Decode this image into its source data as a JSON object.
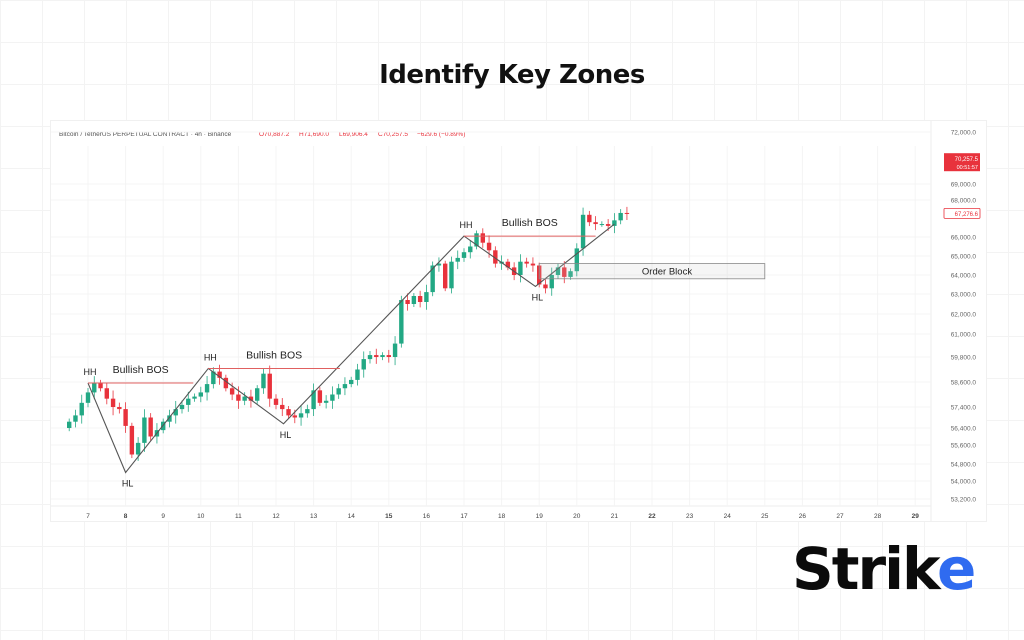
{
  "title": "Identify Key Zones",
  "logo": {
    "text_dark": "Strik",
    "text_blue": "e"
  },
  "chart_data": {
    "type": "candlestick",
    "symbol_line": "Bitcoin / TetherUS PERPETUAL CONTRACT · 4h · Binance",
    "ohlc_readout": {
      "open": "O70,887.2",
      "high": "H71,690.0",
      "low": "L69,906.4",
      "close": "C70,257.5",
      "change": "−629.6 (−0.89%)"
    },
    "x_ticks": [
      {
        "label": "7",
        "bold": false
      },
      {
        "label": "8",
        "bold": true
      },
      {
        "label": "9",
        "bold": false
      },
      {
        "label": "10",
        "bold": false
      },
      {
        "label": "11",
        "bold": false
      },
      {
        "label": "12",
        "bold": false
      },
      {
        "label": "13",
        "bold": false
      },
      {
        "label": "14",
        "bold": false
      },
      {
        "label": "15",
        "bold": true
      },
      {
        "label": "16",
        "bold": false
      },
      {
        "label": "17",
        "bold": false
      },
      {
        "label": "18",
        "bold": false
      },
      {
        "label": "19",
        "bold": false
      },
      {
        "label": "20",
        "bold": false
      },
      {
        "label": "21",
        "bold": false
      },
      {
        "label": "22",
        "bold": true
      },
      {
        "label": "23",
        "bold": false
      },
      {
        "label": "24",
        "bold": false
      },
      {
        "label": "25",
        "bold": false
      },
      {
        "label": "26",
        "bold": false
      },
      {
        "label": "27",
        "bold": false
      },
      {
        "label": "28",
        "bold": false
      },
      {
        "label": "29",
        "bold": true
      }
    ],
    "y_ticks": [
      {
        "value": 72000,
        "label": "72,000.0"
      },
      {
        "value": 69000,
        "label": "69,000.0"
      },
      {
        "value": 68000,
        "label": "68,000.0"
      },
      {
        "value": 66000,
        "label": "66,000.0"
      },
      {
        "value": 65000,
        "label": "65,000.0"
      },
      {
        "value": 64000,
        "label": "64,000.0"
      },
      {
        "value": 63000,
        "label": "63,000.0"
      },
      {
        "value": 62000,
        "label": "62,000.0"
      },
      {
        "value": 61000,
        "label": "61,000.0"
      },
      {
        "value": 59800,
        "label": "59,800.0"
      },
      {
        "value": 58600,
        "label": "58,600.0"
      },
      {
        "value": 57400,
        "label": "57,400.0"
      },
      {
        "value": 56400,
        "label": "56,400.0"
      },
      {
        "value": 55600,
        "label": "55,600.0"
      },
      {
        "value": 54800,
        "label": "54,800.0"
      },
      {
        "value": 54000,
        "label": "54,000.0"
      },
      {
        "value": 53200,
        "label": "53,200.0"
      }
    ],
    "price_badges": [
      {
        "value": 70257.5,
        "label": "70,257.5",
        "sub": "00:51:57",
        "style": "filled",
        "color": "#e8323c"
      },
      {
        "value": 67276.6,
        "label": "67,276.6",
        "style": "outline",
        "color": "#e8323c"
      }
    ],
    "candles_per_day": 6,
    "start_day": 6.5,
    "closes": [
      56700,
      57000,
      57600,
      58100,
      58550,
      58300,
      57800,
      57400,
      57300,
      56500,
      55200,
      55700,
      56900,
      56000,
      56300,
      56700,
      57000,
      57300,
      57500,
      57800,
      57900,
      58100,
      58500,
      59100,
      58800,
      58300,
      58000,
      57700,
      57900,
      57700,
      58300,
      59000,
      57800,
      57500,
      57300,
      57000,
      56900,
      57100,
      57300,
      58200,
      57600,
      57700,
      58000,
      58300,
      58500,
      58700,
      59200,
      59700,
      59900,
      59800,
      59900,
      59800,
      60500,
      62700,
      62500,
      62900,
      62600,
      63100,
      64500,
      64600,
      63300,
      64700,
      64900,
      65200,
      65500,
      66200,
      65700,
      65300,
      64600,
      64700,
      64400,
      64000,
      64700,
      64600,
      64500,
      63500,
      63300,
      64000,
      64400,
      63900,
      64200,
      65400,
      67200,
      66800,
      66700,
      66700,
      66600,
      66900,
      67300,
      67250
    ],
    "up_color": "#22a884",
    "down_color": "#e8323c",
    "annotations": [
      {
        "type": "swing",
        "label": "HH",
        "day": 7.0,
        "price": 58550
      },
      {
        "type": "swing",
        "label": "HL",
        "day": 8.0,
        "price": 54400
      },
      {
        "type": "swing",
        "label": "HH",
        "day": 10.2,
        "price": 59250
      },
      {
        "type": "swing",
        "label": "HL",
        "day": 12.2,
        "price": 56600
      },
      {
        "type": "swing",
        "label": "HH",
        "day": 17.0,
        "price": 66050
      },
      {
        "type": "swing",
        "label": "HL",
        "day": 18.9,
        "price": 63400
      },
      {
        "type": "bos",
        "label": "Bullish BOS",
        "from_day": 7.0,
        "to_day": 9.8,
        "price": 58550
      },
      {
        "type": "bos",
        "label": "Bullish BOS",
        "from_day": 10.2,
        "to_day": 13.7,
        "price": 59250
      },
      {
        "type": "bos",
        "label": "Bullish BOS",
        "from_day": 17.0,
        "to_day": 20.5,
        "price": 66050
      },
      {
        "type": "zone",
        "label": "Order Block",
        "from_day": 19.0,
        "to_day": 25.0,
        "price_top": 64600,
        "price_bottom": 63800
      }
    ],
    "structure_path": [
      {
        "day": 7.0,
        "price": 58550
      },
      {
        "day": 8.0,
        "price": 54400
      },
      {
        "day": 10.2,
        "price": 59250
      },
      {
        "day": 12.2,
        "price": 56600
      },
      {
        "day": 17.0,
        "price": 66050
      },
      {
        "day": 18.9,
        "price": 63400
      },
      {
        "day": 21.0,
        "price": 66700
      }
    ]
  }
}
